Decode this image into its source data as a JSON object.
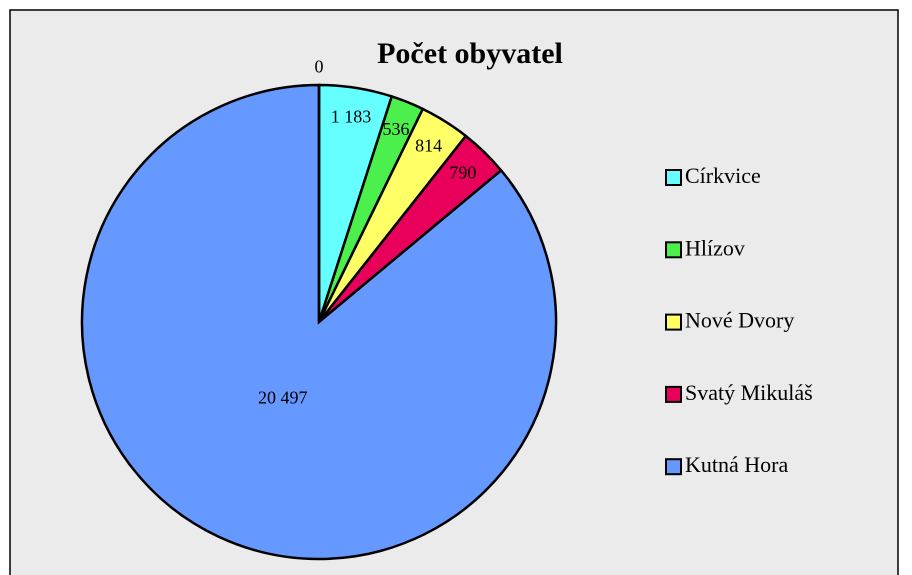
{
  "chart_data": {
    "type": "pie",
    "title": "Počet obyvatel",
    "categories": [
      "Církvice",
      "Hlízov",
      "Nové Dvory",
      "Svatý Mikuláš",
      "Kutná Hora",
      null
    ],
    "values": [
      1183,
      536,
      814,
      790,
      20497,
      0
    ],
    "value_labels": [
      "1 183",
      "536",
      "814",
      "790",
      "20 497",
      "0"
    ],
    "colors": [
      "#66ffff",
      "#4cf04c",
      "#ffff66",
      "#e8005a",
      "#6699ff",
      "#993366"
    ],
    "legend": "right"
  }
}
